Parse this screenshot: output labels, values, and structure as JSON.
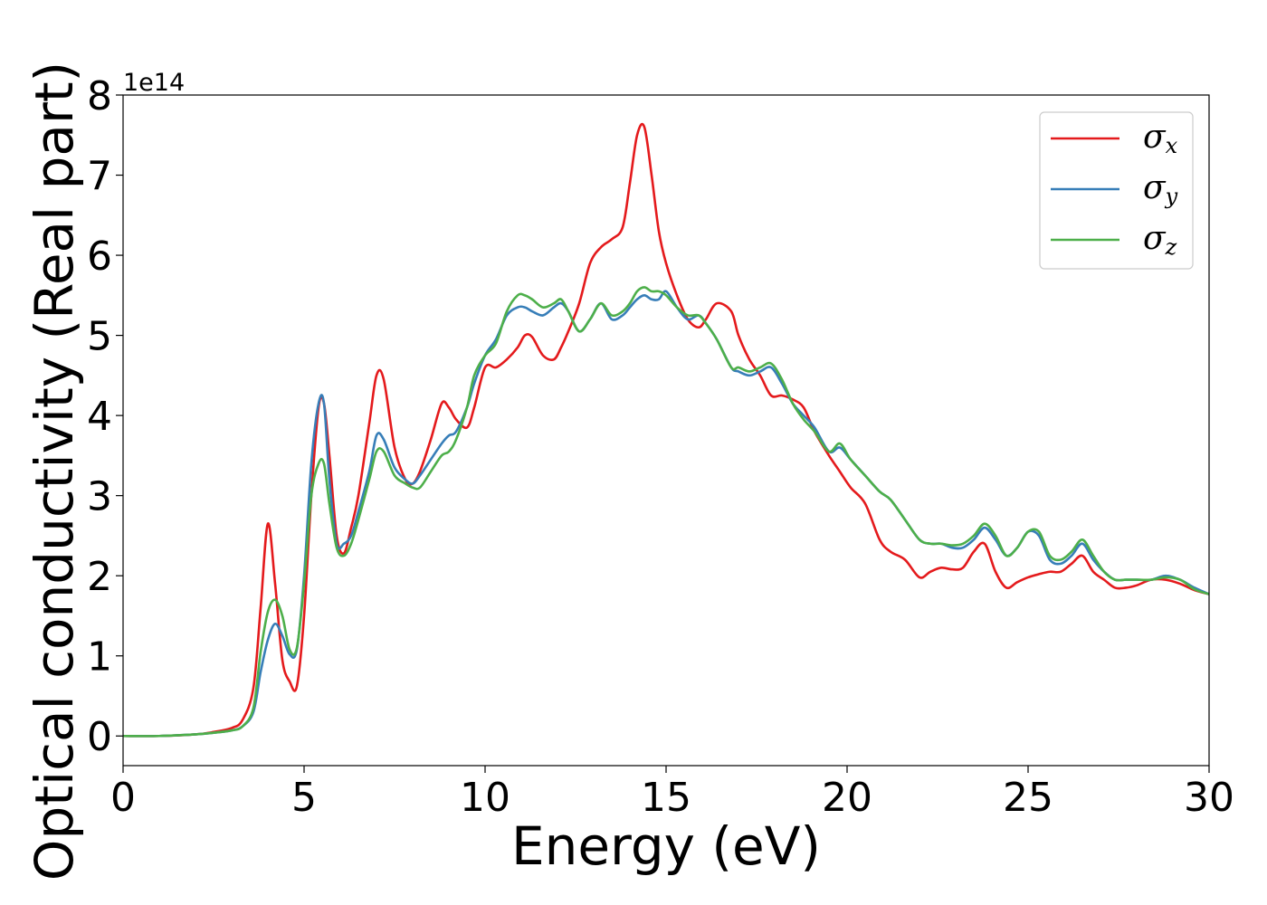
{
  "chart_data": {
    "type": "line",
    "xlabel": "Energy (eV)",
    "ylabel": "Optical conductivity (Real part)",
    "y_offset_label": "1e14",
    "xlim": [
      0,
      30
    ],
    "ylim": [
      -0.37,
      8
    ],
    "x_ticks": [
      0,
      5,
      10,
      15,
      20,
      25,
      30
    ],
    "y_ticks": [
      0,
      1,
      2,
      3,
      4,
      5,
      6,
      7,
      8
    ],
    "grid": false,
    "legend_position": "top-right",
    "x": [
      0,
      1,
      2,
      2.5,
      3,
      3.3,
      3.6,
      3.8,
      4.0,
      4.2,
      4.4,
      4.6,
      4.8,
      5.0,
      5.2,
      5.4,
      5.55,
      5.7,
      5.9,
      6.1,
      6.3,
      6.5,
      6.8,
      7.0,
      7.2,
      7.5,
      7.8,
      8.0,
      8.2,
      8.5,
      8.8,
      9.0,
      9.2,
      9.5,
      9.7,
      10.0,
      10.3,
      10.6,
      10.9,
      11.1,
      11.3,
      11.6,
      11.9,
      12.1,
      12.3,
      12.6,
      12.9,
      13.2,
      13.5,
      13.8,
      14.0,
      14.2,
      14.4,
      14.6,
      14.8,
      15.0,
      15.3,
      15.6,
      15.9,
      16.1,
      16.4,
      16.8,
      17.0,
      17.3,
      17.6,
      17.9,
      18.2,
      18.5,
      18.8,
      19.1,
      19.5,
      19.8,
      20.1,
      20.5,
      20.9,
      21.2,
      21.6,
      22.0,
      22.3,
      22.6,
      22.9,
      23.2,
      23.5,
      23.8,
      24.1,
      24.4,
      24.7,
      25.0,
      25.3,
      25.6,
      25.9,
      26.2,
      26.5,
      26.8,
      27.1,
      27.4,
      27.7,
      28.0,
      28.4,
      28.8,
      29.2,
      29.6,
      30.0
    ],
    "series": [
      {
        "name": "σx",
        "color": "#e41a1c",
        "values": [
          0,
          0,
          0.02,
          0.05,
          0.1,
          0.2,
          0.6,
          1.6,
          2.65,
          1.9,
          0.95,
          0.68,
          0.62,
          1.5,
          3.0,
          4.1,
          4.15,
          3.5,
          2.5,
          2.28,
          2.6,
          3.0,
          3.9,
          4.5,
          4.45,
          3.6,
          3.2,
          3.15,
          3.3,
          3.7,
          4.15,
          4.1,
          3.95,
          3.85,
          4.1,
          4.6,
          4.6,
          4.7,
          4.85,
          5.0,
          4.98,
          4.75,
          4.7,
          4.85,
          5.05,
          5.4,
          5.9,
          6.1,
          6.2,
          6.35,
          6.9,
          7.5,
          7.6,
          7.0,
          6.3,
          5.9,
          5.5,
          5.2,
          5.1,
          5.2,
          5.4,
          5.3,
          5.0,
          4.7,
          4.5,
          4.25,
          4.25,
          4.2,
          4.1,
          3.8,
          3.5,
          3.3,
          3.1,
          2.9,
          2.45,
          2.3,
          2.2,
          1.98,
          2.05,
          2.1,
          2.08,
          2.1,
          2.3,
          2.4,
          2.05,
          1.85,
          1.92,
          1.98,
          2.02,
          2.05,
          2.05,
          2.15,
          2.25,
          2.05,
          1.95,
          1.85,
          1.85,
          1.88,
          1.95,
          1.95,
          1.9,
          1.82,
          1.77
        ]
      },
      {
        "name": "σy",
        "color": "#377eb8",
        "values": [
          0,
          0,
          0.02,
          0.04,
          0.07,
          0.12,
          0.3,
          0.8,
          1.2,
          1.4,
          1.25,
          1.02,
          1.08,
          2.0,
          3.4,
          4.15,
          4.15,
          3.2,
          2.4,
          2.4,
          2.5,
          2.8,
          3.3,
          3.75,
          3.7,
          3.35,
          3.2,
          3.15,
          3.25,
          3.45,
          3.65,
          3.75,
          3.8,
          4.1,
          4.4,
          4.75,
          4.95,
          5.25,
          5.35,
          5.35,
          5.3,
          5.25,
          5.35,
          5.4,
          5.3,
          5.05,
          5.2,
          5.4,
          5.2,
          5.25,
          5.35,
          5.45,
          5.5,
          5.45,
          5.45,
          5.55,
          5.35,
          5.2,
          5.25,
          5.15,
          4.95,
          4.6,
          4.55,
          4.5,
          4.55,
          4.6,
          4.4,
          4.15,
          4.0,
          3.85,
          3.55,
          3.6,
          3.45,
          3.25,
          3.05,
          2.95,
          2.7,
          2.45,
          2.4,
          2.4,
          2.35,
          2.35,
          2.45,
          2.6,
          2.45,
          2.25,
          2.35,
          2.55,
          2.5,
          2.2,
          2.15,
          2.25,
          2.4,
          2.2,
          2.05,
          1.95,
          1.95,
          1.95,
          1.95,
          2.0,
          1.95,
          1.85,
          1.77
        ]
      },
      {
        "name": "σz",
        "color": "#4daf4a",
        "values": [
          0,
          0,
          0.02,
          0.04,
          0.07,
          0.12,
          0.35,
          1.05,
          1.55,
          1.7,
          1.5,
          1.08,
          1.1,
          1.9,
          3.0,
          3.4,
          3.4,
          2.9,
          2.35,
          2.25,
          2.4,
          2.7,
          3.2,
          3.55,
          3.55,
          3.25,
          3.15,
          3.1,
          3.1,
          3.3,
          3.5,
          3.55,
          3.7,
          4.1,
          4.5,
          4.75,
          4.9,
          5.3,
          5.5,
          5.5,
          5.45,
          5.35,
          5.4,
          5.45,
          5.3,
          5.05,
          5.2,
          5.4,
          5.25,
          5.3,
          5.4,
          5.55,
          5.6,
          5.55,
          5.55,
          5.5,
          5.35,
          5.25,
          5.25,
          5.15,
          4.95,
          4.6,
          4.6,
          4.55,
          4.6,
          4.65,
          4.45,
          4.15,
          3.95,
          3.8,
          3.55,
          3.65,
          3.45,
          3.25,
          3.05,
          2.95,
          2.7,
          2.45,
          2.4,
          2.4,
          2.38,
          2.4,
          2.5,
          2.65,
          2.5,
          2.25,
          2.35,
          2.55,
          2.55,
          2.25,
          2.2,
          2.3,
          2.45,
          2.25,
          2.05,
          1.95,
          1.95,
          1.95,
          1.95,
          1.98,
          1.95,
          1.83,
          1.77
        ]
      }
    ]
  }
}
